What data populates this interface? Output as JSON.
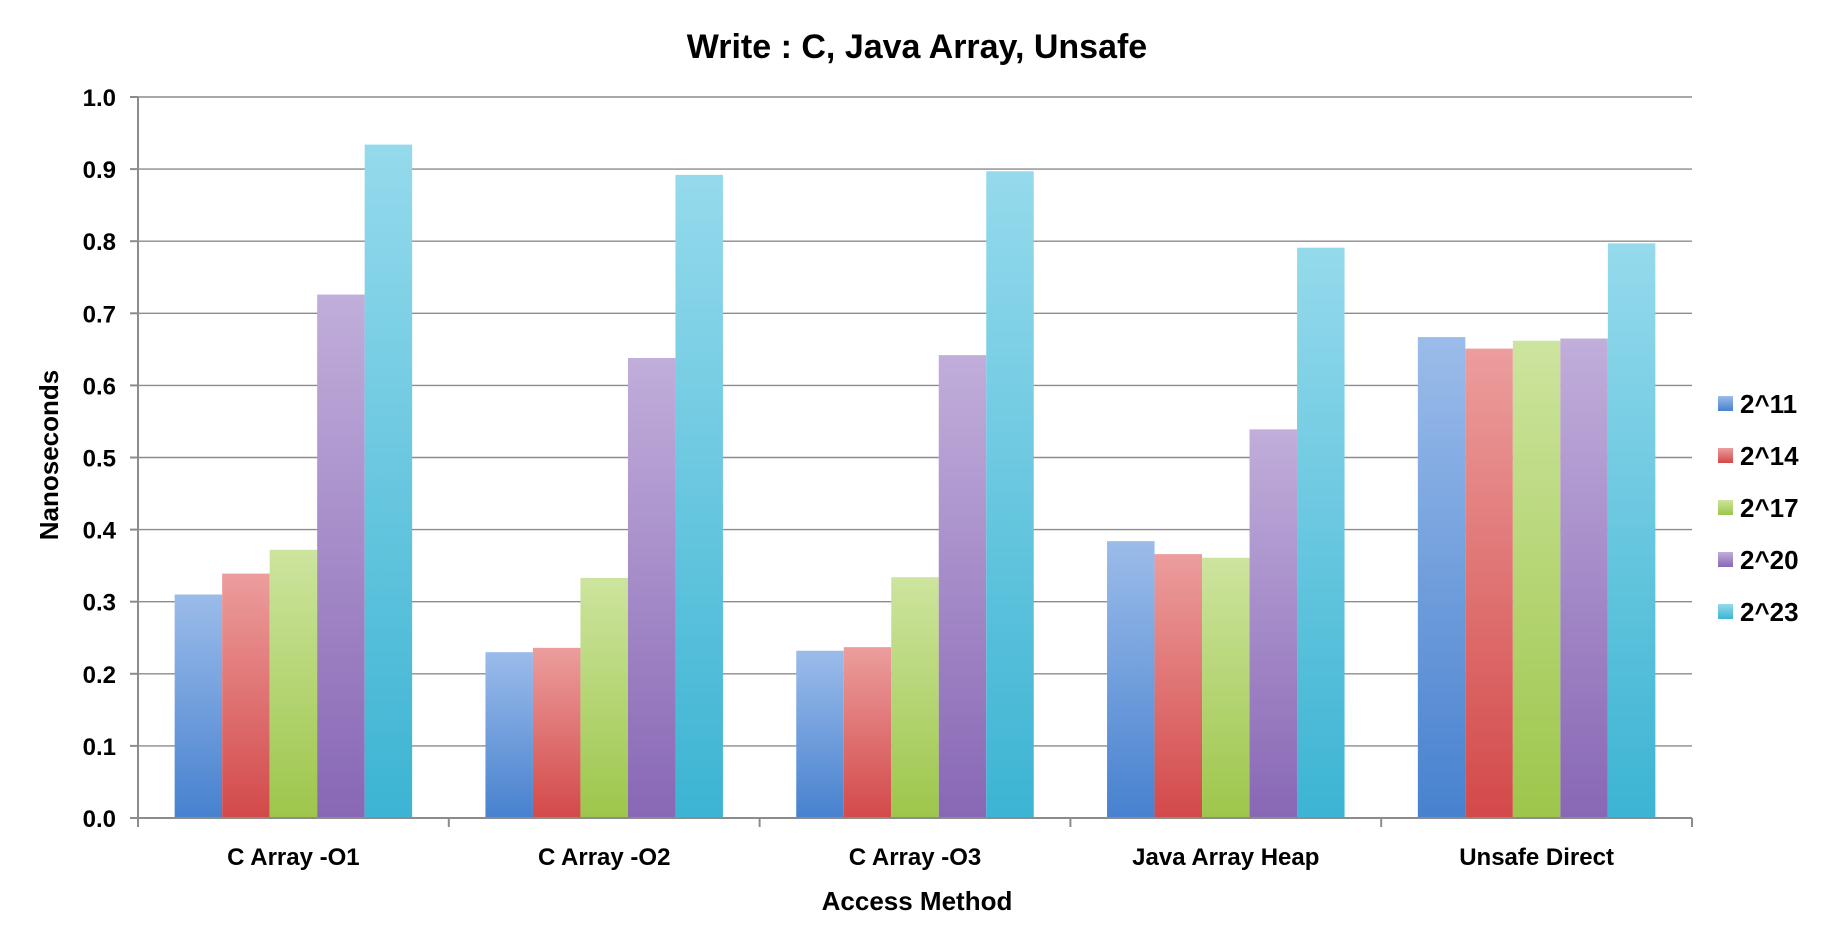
{
  "chart_data": {
    "type": "bar",
    "title": "Write : C, Java Array, Unsafe",
    "xlabel": "Access Method",
    "ylabel": "Nanoseconds",
    "ylim": [
      0,
      1.0
    ],
    "yticks": [
      "0.0",
      "0.1",
      "0.2",
      "0.3",
      "0.4",
      "0.5",
      "0.6",
      "0.7",
      "0.8",
      "0.9",
      "1.0"
    ],
    "grid": true,
    "legend_position": "right",
    "categories": [
      "C Array -O1",
      "C Array -O2",
      "C Array -O3",
      "Java Array Heap",
      "Unsafe Direct"
    ],
    "series": [
      {
        "name": "2^11",
        "color": "#4a86d8",
        "values": [
          0.31,
          0.23,
          0.232,
          0.384,
          0.667
        ]
      },
      {
        "name": "2^14",
        "color": "#dc4c4c",
        "values": [
          0.339,
          0.236,
          0.237,
          0.366,
          0.651
        ]
      },
      {
        "name": "2^17",
        "color": "#a4ce4e",
        "values": [
          0.372,
          0.333,
          0.334,
          0.361,
          0.662
        ]
      },
      {
        "name": "2^20",
        "color": "#8e6bbd",
        "values": [
          0.726,
          0.638,
          0.642,
          0.539,
          0.665
        ]
      },
      {
        "name": "2^23",
        "color": "#3fbcdc",
        "values": [
          0.934,
          0.892,
          0.897,
          0.791,
          0.797
        ]
      }
    ]
  }
}
